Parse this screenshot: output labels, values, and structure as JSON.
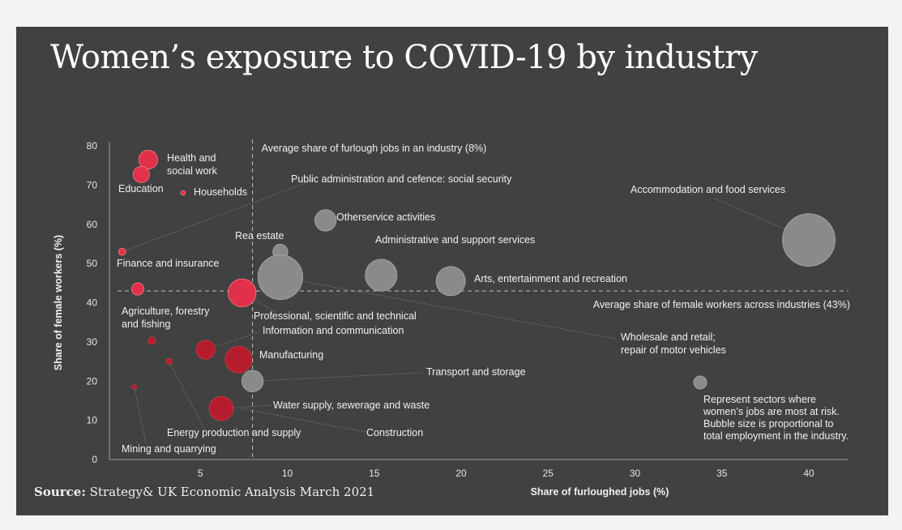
{
  "title": "Women’s exposure to COVID-19 by industry",
  "source": {
    "label": "Source:",
    "text": "Strategy& UK Economic Analysis March 2021"
  },
  "colors": {
    "background": "#414141",
    "at_risk": "#e0304a",
    "at_risk_dark": "#b51c2c",
    "other": "#8a8a8a",
    "text": "#f0f0f0"
  },
  "chart_data": {
    "type": "bubble",
    "xlabel": "Share of furloughed jobs (%)",
    "ylabel": "Share of female workers (%)",
    "xlim": [
      0,
      42
    ],
    "ylim": [
      0,
      80
    ],
    "x_ticks": [
      5,
      10,
      15,
      20,
      25,
      30,
      35,
      40
    ],
    "y_ticks": [
      0,
      10,
      20,
      30,
      40,
      50,
      60,
      70,
      80
    ],
    "grid": false,
    "reference_lines": [
      {
        "axis": "x",
        "value": 8,
        "label": "Average share of furlough jobs in an industry (8%)"
      },
      {
        "axis": "y",
        "value": 43,
        "label": "Average share of female workers across industries (43%)"
      }
    ],
    "legend": {
      "text": "Represent sectors where women’s jobs are most at risk. Bubble size is proportional to total employment in the industry.",
      "lines": [
        "Represent sectors where",
        "women’s jobs are most at risk.",
        "Bubble size is proportional to",
        "total employment in the industry."
      ]
    },
    "points": [
      {
        "label": "Health and social work",
        "x": 2.0,
        "y": 76.5,
        "size": 12,
        "at_risk": true,
        "lines": [
          "Health and",
          "social work"
        ]
      },
      {
        "label": "Education",
        "x": 1.6,
        "y": 72.7,
        "size": 10,
        "at_risk": true,
        "lines": [
          "Education"
        ]
      },
      {
        "label": "Households",
        "x": 4.0,
        "y": 68.0,
        "size": 1,
        "at_risk": true,
        "lines": [
          "Households"
        ]
      },
      {
        "label": "Public administration and cefence: social security",
        "x": 0.5,
        "y": 53.0,
        "size": 3,
        "at_risk": true,
        "lines": [
          "Public administration and cefence: social security"
        ]
      },
      {
        "label": "Finance and insurance",
        "x": 1.4,
        "y": 43.5,
        "size": 7,
        "at_risk": true,
        "lines": [
          "Finance and insurance"
        ]
      },
      {
        "label": "Professional, scientific and technical",
        "x": 7.4,
        "y": 42.5,
        "size": 19,
        "at_risk": true,
        "lines": [
          "Professional, scientific and technical"
        ]
      },
      {
        "label": "Agriculture, forestry and fishing",
        "x": 2.2,
        "y": 30.3,
        "size": 3,
        "at_risk": false,
        "lines": [
          "Agriculture, forestry",
          "and fishing"
        ]
      },
      {
        "label": "Information and communication",
        "x": 5.3,
        "y": 28.0,
        "size": 12,
        "at_risk": false,
        "lines": [
          "Information and communication"
        ]
      },
      {
        "label": "Manufacturing",
        "x": 7.2,
        "y": 25.5,
        "size": 18,
        "at_risk": false,
        "lines": [
          "Manufacturing"
        ]
      },
      {
        "label": "Energy production and supply",
        "x": 3.2,
        "y": 25.0,
        "size": 2,
        "at_risk": false,
        "lines": [
          "Energy production and supply"
        ]
      },
      {
        "label": "Mining and quarrying",
        "x": 1.2,
        "y": 18.5,
        "size": 1,
        "at_risk": false,
        "lines": [
          "Mining and quarrying"
        ]
      },
      {
        "label": "Water supply, sewerage and waste",
        "x": 6.2,
        "y": 13.0,
        "size": 16,
        "at_risk": false,
        "lines": [
          "Water supply, sewerage and waste"
        ]
      },
      {
        "label": "Transport and storage",
        "x": 8.0,
        "y": 20.0,
        "size": 14,
        "at_risk": false,
        "lines": [
          "Transport and storage"
        ]
      },
      {
        "label": "Construction",
        "x": 7.4,
        "y": 13.0,
        "size": 0,
        "at_risk": false,
        "lines": [
          "Construction"
        ]
      },
      {
        "label": "Rea estate",
        "x": 9.6,
        "y": 53.0,
        "size": 9,
        "at_risk": false,
        "lines": [
          "Rea estate"
        ]
      },
      {
        "label": "Wholesale and retail; repair of motor vehicles",
        "x": 9.6,
        "y": 46.5,
        "size": 32,
        "at_risk": false,
        "lines": [
          "Wholesale and retail;",
          "repair of motor vehicles"
        ]
      },
      {
        "label": "Other service activities",
        "x": 12.2,
        "y": 61.0,
        "size": 14,
        "at_risk": false,
        "lines": [
          "Otherservice activities"
        ]
      },
      {
        "label": "Administrative and support services",
        "x": 15.4,
        "y": 47.0,
        "size": 22,
        "at_risk": false,
        "lines": [
          "Administrative and support services"
        ]
      },
      {
        "label": "Arts, entertainment and recreation",
        "x": 19.4,
        "y": 45.5,
        "size": 20,
        "at_risk": false,
        "lines": [
          "Arts, entertainment and recreation"
        ]
      },
      {
        "label": "Accommodation and food services",
        "x": 40.0,
        "y": 56.0,
        "size": 38,
        "at_risk": false,
        "lines": [
          "Accommodation and food services"
        ]
      }
    ]
  }
}
